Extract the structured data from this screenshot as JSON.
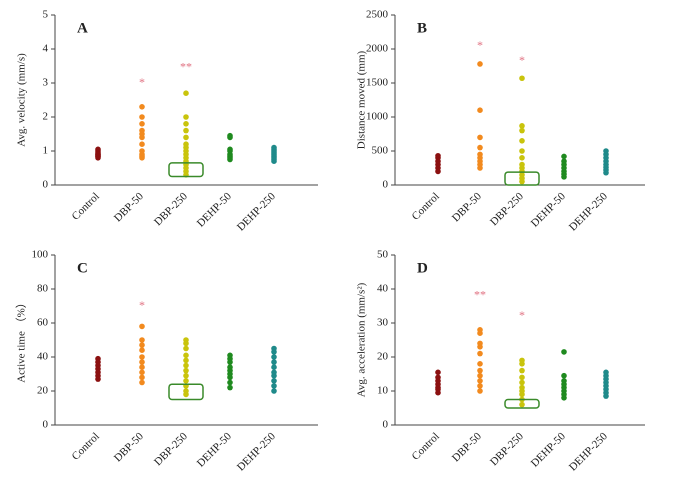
{
  "chart_data": [
    {
      "type": "strip",
      "panel_label": "A",
      "ylabel": "Avg. velocity (mm/s)",
      "categories": [
        "Control",
        "DBP-50",
        "DBP-250",
        "DEHP-50",
        "DEHP-250"
      ],
      "colors": [
        "#8b1010",
        "#f28a1e",
        "#c9c40c",
        "#1f8a1f",
        "#1f8a8a"
      ],
      "values": [
        [
          0.8,
          0.85,
          0.9,
          0.95,
          1.0,
          1.05,
          0.9,
          0.85
        ],
        [
          0.8,
          0.85,
          0.9,
          1.0,
          1.2,
          1.4,
          1.5,
          1.6,
          1.8,
          2.0,
          2.3
        ],
        [
          0.3,
          0.4,
          0.5,
          0.6,
          0.7,
          0.8,
          0.9,
          1.0,
          1.1,
          1.2,
          1.4,
          1.6,
          1.8,
          2.0,
          2.7
        ],
        [
          0.75,
          0.8,
          0.85,
          0.9,
          1.0,
          1.05,
          1.4,
          1.45
        ],
        [
          0.7,
          0.75,
          0.8,
          0.85,
          0.9,
          0.95,
          1.0,
          1.05,
          1.1
        ]
      ],
      "ylim": [
        0,
        5
      ],
      "yticks": [
        0,
        1,
        2,
        3,
        4,
        5
      ],
      "annotations": [
        {
          "text": "*",
          "category": "DBP-50",
          "y": 3.0
        },
        {
          "text": "**",
          "category": "DBP-250",
          "y": 3.45
        }
      ],
      "highlight": {
        "category": "DBP-250",
        "range": [
          0.25,
          0.65
        ],
        "color": "#3a8a2a"
      }
    },
    {
      "type": "strip",
      "panel_label": "B",
      "ylabel": "Distance moved (mm)",
      "categories": [
        "Control",
        "DBP-50",
        "DBP-250",
        "DEHP-50",
        "DEHP-250"
      ],
      "colors": [
        "#8b1010",
        "#f28a1e",
        "#c9c40c",
        "#1f8a1f",
        "#1f8a8a"
      ],
      "values": [
        [
          200,
          250,
          300,
          350,
          400,
          430
        ],
        [
          250,
          300,
          350,
          400,
          450,
          550,
          700,
          1100,
          1780
        ],
        [
          50,
          100,
          150,
          200,
          250,
          300,
          400,
          500,
          650,
          800,
          870,
          1570
        ],
        [
          120,
          160,
          200,
          250,
          300,
          350,
          420
        ],
        [
          180,
          220,
          260,
          300,
          350,
          400,
          450,
          500
        ]
      ],
      "ylim": [
        0,
        2500
      ],
      "yticks": [
        0,
        500,
        1000,
        1500,
        2000,
        2500
      ],
      "annotations": [
        {
          "text": "*",
          "category": "DBP-50",
          "y": 2040
        },
        {
          "text": "*",
          "category": "DBP-250",
          "y": 1820
        }
      ],
      "highlight": {
        "category": "DBP-250",
        "range": [
          0,
          190
        ],
        "color": "#3a8a2a"
      }
    },
    {
      "type": "strip",
      "panel_label": "C",
      "ylabel": "Active time （%）",
      "categories": [
        "Control",
        "DBP-50",
        "DBP-250",
        "DEHP-50",
        "DEHP-250"
      ],
      "colors": [
        "#8b1010",
        "#f28a1e",
        "#c9c40c",
        "#1f8a1f",
        "#1f8a8a"
      ],
      "values": [
        [
          27,
          29,
          31,
          33,
          35,
          37,
          39
        ],
        [
          25,
          28,
          31,
          34,
          37,
          40,
          44,
          47,
          50,
          58
        ],
        [
          18,
          20,
          23,
          26,
          29,
          32,
          35,
          38,
          41,
          45,
          48,
          50
        ],
        [
          22,
          25,
          28,
          30,
          32,
          34,
          37,
          39,
          41
        ],
        [
          20,
          23,
          26,
          29,
          31,
          34,
          37,
          40,
          43,
          45
        ]
      ],
      "ylim": [
        0,
        100
      ],
      "yticks": [
        0,
        20,
        40,
        60,
        80,
        100
      ],
      "annotations": [
        {
          "text": "*",
          "category": "DBP-50",
          "y": 70
        }
      ],
      "highlight": {
        "category": "DBP-250",
        "range": [
          15,
          24
        ],
        "color": "#3a8a2a"
      }
    },
    {
      "type": "strip",
      "panel_label": "D",
      "ylabel": "Avg. acceleration (mm/s²)",
      "categories": [
        "Control",
        "DBP-50",
        "DBP-250",
        "DEHP-50",
        "DEHP-250"
      ],
      "colors": [
        "#8b1010",
        "#f28a1e",
        "#c9c40c",
        "#1f8a1f",
        "#1f8a8a"
      ],
      "values": [
        [
          9.5,
          10.5,
          11,
          12,
          13,
          14,
          15.5
        ],
        [
          10,
          11.5,
          13,
          14.5,
          16,
          18,
          21,
          23,
          24,
          27,
          28
        ],
        [
          6,
          7.5,
          9,
          10,
          11,
          12.5,
          14,
          16,
          18,
          19
        ],
        [
          8,
          9,
          10,
          11,
          12,
          13,
          14.5,
          21.5
        ],
        [
          8.5,
          9.5,
          10.5,
          11.5,
          12.5,
          13.5,
          14.5,
          15.5
        ]
      ],
      "ylim": [
        0,
        50
      ],
      "yticks": [
        0,
        10,
        20,
        30,
        40,
        50
      ],
      "annotations": [
        {
          "text": "**",
          "category": "DBP-50",
          "y": 38
        },
        {
          "text": "*",
          "category": "DBP-250",
          "y": 32
        }
      ],
      "highlight": {
        "category": "DBP-250",
        "range": [
          5,
          7.5
        ],
        "color": "#3a8a2a"
      }
    }
  ]
}
